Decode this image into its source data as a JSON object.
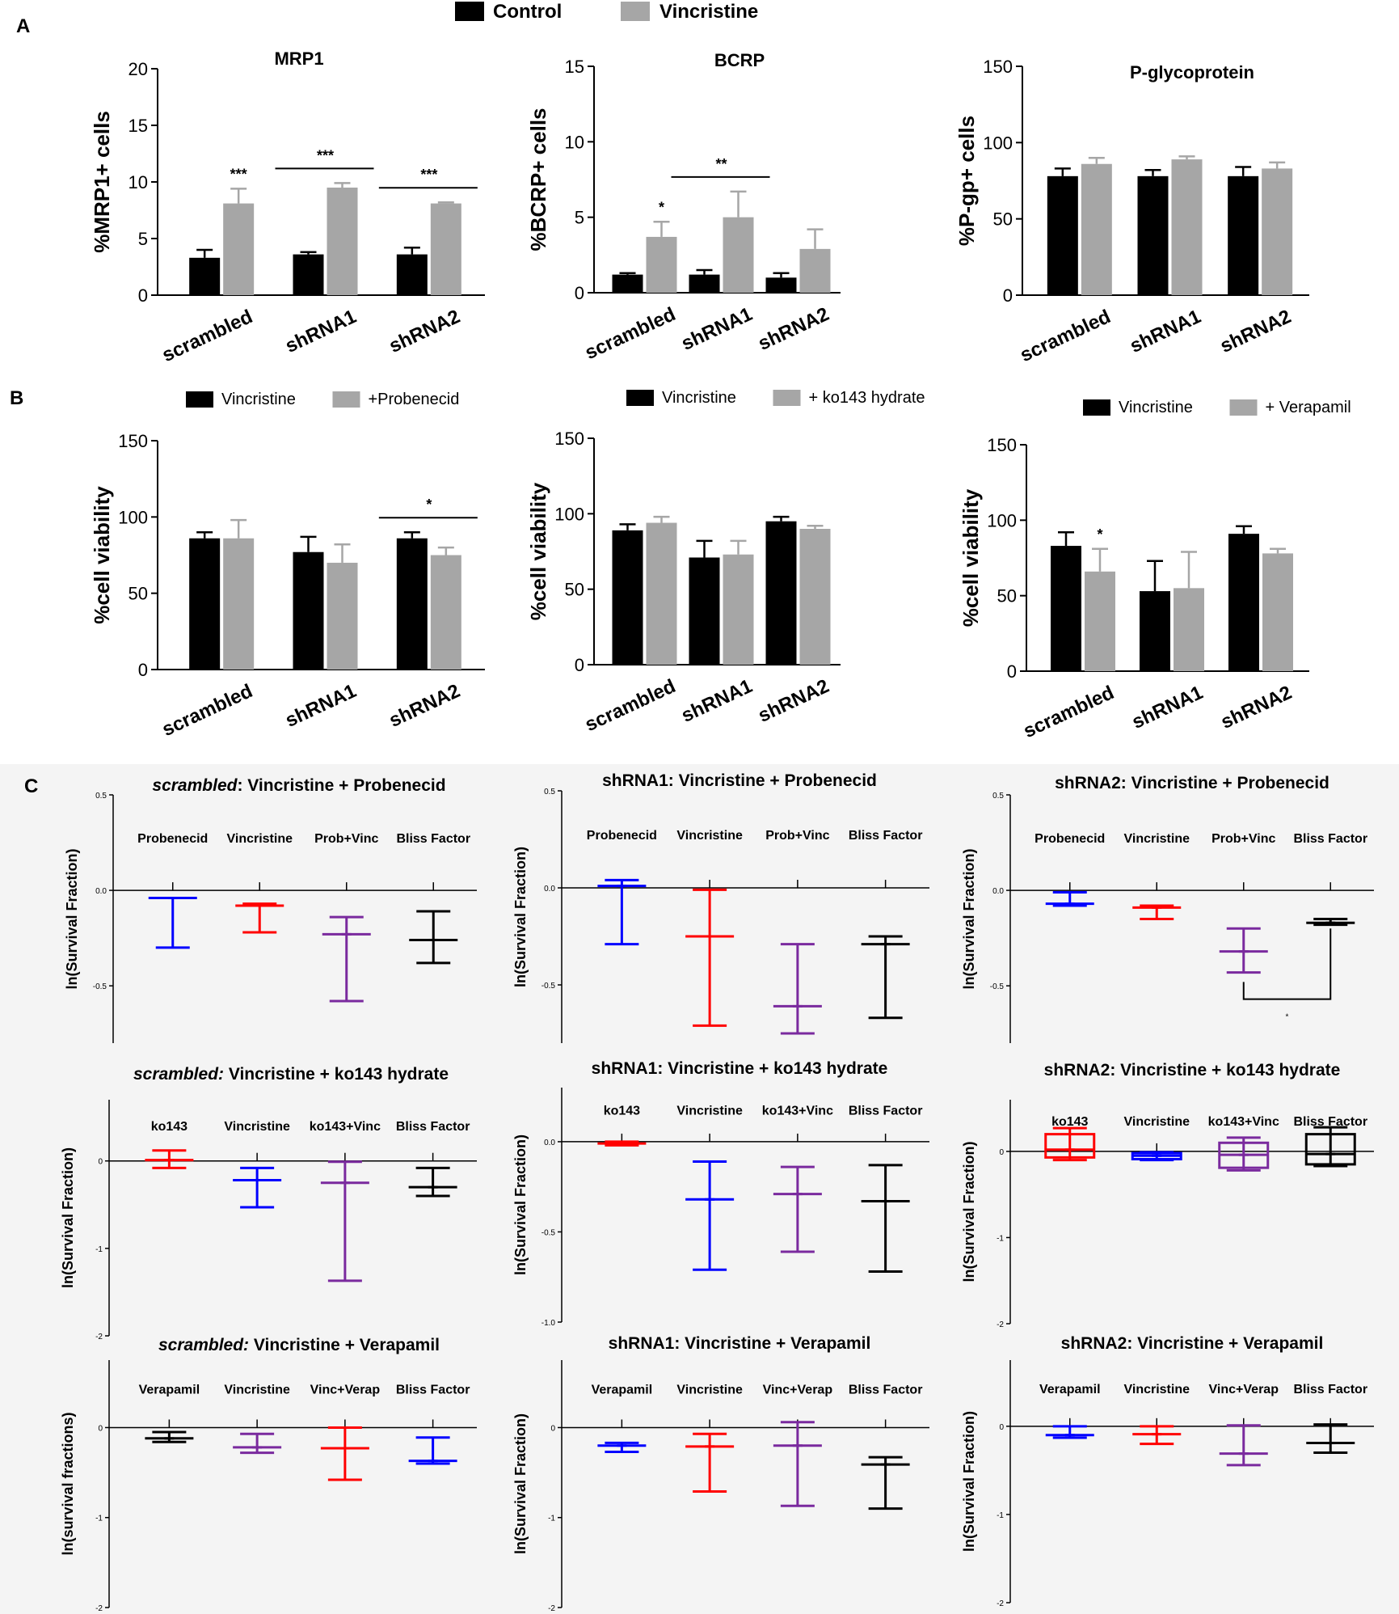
{
  "legend_top": {
    "control": "Control",
    "vincristine": "Vincristine",
    "colors": {
      "control": "#000000",
      "vincristine": "#a6a6a6"
    }
  },
  "panels": {
    "A": "A",
    "B": "B",
    "C": "C"
  },
  "chart_data": [
    {
      "id": "A1",
      "type": "bar",
      "title": "MRP1",
      "ylabel": "%MRP1+ cells",
      "ylim": [
        0,
        20
      ],
      "yticks": [
        "0",
        "5",
        "10",
        "15",
        "20"
      ],
      "categories": [
        "scrambled",
        "shRNA1",
        "shRNA2"
      ],
      "series": [
        {
          "name": "Control",
          "color": "#000000",
          "values": [
            3.3,
            3.6,
            3.6
          ],
          "errors": [
            0.7,
            0.2,
            0.6
          ]
        },
        {
          "name": "Vincristine",
          "color": "#a6a6a6",
          "values": [
            8.1,
            9.5,
            8.1
          ],
          "errors": [
            1.3,
            0.4,
            0.1
          ]
        }
      ],
      "annotations": [
        {
          "text": "***",
          "category": 0,
          "type": "single"
        },
        {
          "text": "***",
          "category": 1,
          "type": "bracket"
        },
        {
          "text": "***",
          "category": 2,
          "type": "bracket"
        }
      ]
    },
    {
      "id": "A2",
      "type": "bar",
      "title": "BCRP",
      "ylabel": "%BCRP+ cells",
      "ylim": [
        0,
        15
      ],
      "yticks": [
        "0",
        "5",
        "10",
        "15"
      ],
      "categories": [
        "scrambled",
        "shRNA1",
        "shRNA2"
      ],
      "series": [
        {
          "name": "Control",
          "color": "#000000",
          "values": [
            1.2,
            1.2,
            1.0
          ],
          "errors": [
            0.1,
            0.3,
            0.3
          ]
        },
        {
          "name": "Vincristine",
          "color": "#a6a6a6",
          "values": [
            3.7,
            5.0,
            2.9
          ],
          "errors": [
            1.0,
            1.7,
            1.3
          ]
        }
      ],
      "annotations": [
        {
          "text": "*",
          "category": 0,
          "type": "single"
        },
        {
          "text": "**",
          "category": 1,
          "type": "bracket"
        }
      ]
    },
    {
      "id": "A3",
      "type": "bar",
      "title": "P-glycoprotein",
      "ylabel": "%P-gp+ cells",
      "ylim": [
        0,
        150
      ],
      "yticks": [
        "0",
        "50",
        "100",
        "150"
      ],
      "categories": [
        "scrambled",
        "shRNA1",
        "shRNA2"
      ],
      "series": [
        {
          "name": "Control",
          "color": "#000000",
          "values": [
            78,
            78,
            78
          ],
          "errors": [
            5,
            4,
            6
          ]
        },
        {
          "name": "Vincristine",
          "color": "#a6a6a6",
          "values": [
            86,
            89,
            83
          ],
          "errors": [
            4,
            2,
            4
          ]
        }
      ],
      "annotations": []
    },
    {
      "id": "B1",
      "type": "bar",
      "title": "",
      "ylabel": "%cell viability",
      "ylim": [
        0,
        150
      ],
      "yticks": [
        "0",
        "50",
        "100",
        "150"
      ],
      "legend": [
        "Vincristine",
        "+Probenecid"
      ],
      "categories": [
        "scrambled",
        "shRNA1",
        "shRNA2"
      ],
      "series": [
        {
          "name": "Vincristine",
          "color": "#000000",
          "values": [
            86,
            77,
            86
          ],
          "errors": [
            4,
            10,
            4
          ]
        },
        {
          "name": "+Probenecid",
          "color": "#a6a6a6",
          "values": [
            86,
            70,
            75
          ],
          "errors": [
            12,
            12,
            5
          ]
        }
      ],
      "annotations": [
        {
          "text": "*",
          "category": 2,
          "type": "bracket"
        }
      ]
    },
    {
      "id": "B2",
      "type": "bar",
      "title": "",
      "ylabel": "%cell viability",
      "ylim": [
        0,
        150
      ],
      "yticks": [
        "0",
        "50",
        "100",
        "150"
      ],
      "legend": [
        "Vincristine",
        "+ ko143 hydrate"
      ],
      "categories": [
        "scrambled",
        "shRNA1",
        "shRNA2"
      ],
      "series": [
        {
          "name": "Vincristine",
          "color": "#000000",
          "values": [
            89,
            71,
            95
          ],
          "errors": [
            4,
            11,
            3
          ]
        },
        {
          "name": "+ ko143 hydrate",
          "color": "#a6a6a6",
          "values": [
            94,
            73,
            90
          ],
          "errors": [
            4,
            9,
            2
          ]
        }
      ],
      "annotations": []
    },
    {
      "id": "B3",
      "type": "bar",
      "title": "",
      "ylabel": "%cell viability",
      "ylim": [
        0,
        150
      ],
      "yticks": [
        "0",
        "50",
        "100",
        "150"
      ],
      "legend": [
        "Vincristine",
        "+ Verapamil"
      ],
      "categories": [
        "scrambled",
        "shRNA1",
        "shRNA2"
      ],
      "series": [
        {
          "name": "Vincristine",
          "color": "#000000",
          "values": [
            83,
            53,
            91
          ],
          "errors": [
            9,
            20,
            5
          ]
        },
        {
          "name": "+ Verapamil",
          "color": "#a6a6a6",
          "values": [
            66,
            55,
            78
          ],
          "errors": [
            15,
            24,
            3
          ]
        }
      ],
      "annotations": [
        {
          "text": "*",
          "category": 0,
          "type": "single"
        }
      ]
    },
    {
      "id": "C1",
      "type": "box",
      "title_italic": "scrambled",
      "title_rest": ": Vincristine + Probenecid",
      "ylabel": "ln(Survival Fraction)",
      "ylim": [
        -0.8,
        0.5
      ],
      "yticks": [
        0.5,
        0.0,
        -0.5
      ],
      "ytick_labels": [
        "0.5",
        "0.0",
        "-0.5"
      ],
      "labels": [
        "Probenecid",
        "Vincristine",
        "Prob+Vinc",
        "Bliss Factor"
      ],
      "groups": [
        {
          "color": "#0000ff",
          "min": -0.3,
          "max": -0.04,
          "mean": -0.04
        },
        {
          "color": "#ff0000",
          "min": -0.22,
          "max": -0.07,
          "mean": -0.08
        },
        {
          "color": "#7a2a9e",
          "min": -0.58,
          "max": -0.14,
          "mean": -0.23
        },
        {
          "color": "#000000",
          "min": -0.38,
          "max": -0.11,
          "mean": -0.26
        }
      ]
    },
    {
      "id": "C2",
      "type": "box",
      "title_italic": "",
      "title_rest": "shRNA1: Vincristine + Probenecid",
      "ylabel": "ln(Survival Fraction)",
      "ylim": [
        -0.8,
        0.5
      ],
      "yticks": [
        0.5,
        0.0,
        -0.5
      ],
      "ytick_labels": [
        "0.5",
        "0.0",
        "-0.5"
      ],
      "labels": [
        "Probenecid",
        "Vincristine",
        "Prob+Vinc",
        "Bliss Factor"
      ],
      "groups": [
        {
          "color": "#0000ff",
          "min": -0.29,
          "max": 0.04,
          "mean": 0.01
        },
        {
          "color": "#ff0000",
          "min": -0.71,
          "max": -0.01,
          "mean": -0.25
        },
        {
          "color": "#7a2a9e",
          "min": -0.75,
          "max": -0.29,
          "mean": -0.61
        },
        {
          "color": "#000000",
          "min": -0.67,
          "max": -0.25,
          "mean": -0.29
        }
      ]
    },
    {
      "id": "C3",
      "type": "box",
      "title_italic": "",
      "title_rest": "shRNA2: Vincristine + Probenecid",
      "ylabel": "ln(Survival Fraction)",
      "ylim": [
        -0.8,
        0.5
      ],
      "yticks": [
        0.5,
        0.0,
        -0.5
      ],
      "ytick_labels": [
        "0.5",
        "0.0",
        "-0.5"
      ],
      "labels": [
        "Probenecid",
        "Vincristine",
        "Prob+Vinc",
        "Bliss Factor"
      ],
      "groups": [
        {
          "color": "#0000ff",
          "min": -0.08,
          "max": -0.01,
          "mean": -0.07
        },
        {
          "color": "#ff0000",
          "min": -0.15,
          "max": -0.08,
          "mean": -0.09
        },
        {
          "color": "#7a2a9e",
          "min": -0.43,
          "max": -0.2,
          "mean": -0.32
        },
        {
          "color": "#000000",
          "min": -0.18,
          "max": -0.15,
          "mean": -0.17
        }
      ],
      "sig": {
        "text": "*",
        "from": 2,
        "to": 3
      }
    },
    {
      "id": "C4",
      "type": "box",
      "title_italic": "scrambled:",
      "title_rest": " Vincristine + ko143 hydrate",
      "ylabel": "ln(Survival Fraction)",
      "ylim": [
        -2,
        0.7
      ],
      "yticks": [
        0,
        -1,
        -2
      ],
      "ytick_labels": [
        "0",
        "-1",
        "-2"
      ],
      "labels": [
        "ko143",
        "Vincristine",
        "ko143+Vinc",
        "Bliss Factor"
      ],
      "groups": [
        {
          "color": "#ff0000",
          "min": -0.08,
          "max": 0.12,
          "mean": 0.01
        },
        {
          "color": "#0000ff",
          "min": -0.53,
          "max": -0.08,
          "mean": -0.22
        },
        {
          "color": "#7a2a9e",
          "min": -1.37,
          "max": -0.01,
          "mean": -0.25
        },
        {
          "color": "#000000",
          "min": -0.4,
          "max": -0.08,
          "mean": -0.3
        }
      ]
    },
    {
      "id": "C5",
      "type": "box",
      "title_italic": "",
      "title_rest": "shRNA1: Vincristine + ko143 hydrate",
      "ylabel": "ln(Survival Fraction)",
      "ylim": [
        -1.0,
        0.3
      ],
      "yticks": [
        0.0,
        -0.5,
        -1.0
      ],
      "ytick_labels": [
        "0.0",
        "-0.5",
        "-1.0"
      ],
      "labels": [
        "ko143",
        "Vincristine",
        "ko143+Vinc",
        "Bliss Factor"
      ],
      "groups": [
        {
          "color": "#ff0000",
          "min": -0.02,
          "max": 0.0,
          "mean": -0.01
        },
        {
          "color": "#0000ff",
          "min": -0.71,
          "max": -0.11,
          "mean": -0.32
        },
        {
          "color": "#7a2a9e",
          "min": -0.61,
          "max": -0.14,
          "mean": -0.29
        },
        {
          "color": "#000000",
          "min": -0.72,
          "max": -0.13,
          "mean": -0.33
        }
      ]
    },
    {
      "id": "C6",
      "type": "box",
      "title_italic": "",
      "title_rest": "shRNA2: Vincristine + ko143 hydrate",
      "ylabel": "ln(Survival Fraction)",
      "ylim": [
        -2,
        0.6
      ],
      "yticks": [
        0,
        -1,
        -2
      ],
      "ytick_labels": [
        "0",
        "-1",
        "-2"
      ],
      "labels": [
        "ko143",
        "Vincristine",
        "ko143+Vinc",
        "Bliss Factor"
      ],
      "groups": [
        {
          "color": "#ff0000",
          "min": -0.1,
          "max": 0.27,
          "mean": 0.02,
          "q1": -0.07,
          "q3": 0.2
        },
        {
          "color": "#0000ff",
          "min": -0.1,
          "max": -0.01,
          "mean": -0.05,
          "q1": -0.09,
          "q3": -0.02
        },
        {
          "color": "#7a2a9e",
          "min": -0.22,
          "max": 0.16,
          "mean": -0.04,
          "q1": -0.19,
          "q3": 0.1
        },
        {
          "color": "#000000",
          "min": -0.17,
          "max": 0.28,
          "mean": -0.03,
          "q1": -0.15,
          "q3": 0.2
        }
      ]
    },
    {
      "id": "C7",
      "type": "box",
      "title_italic": "scrambled:",
      "title_rest": " Vincristine + Verapamil",
      "ylabel": "ln(survival fractions)",
      "ylim": [
        -2,
        0.75
      ],
      "yticks": [
        0,
        -1,
        -2
      ],
      "ytick_labels": [
        "0",
        "-1",
        "-2"
      ],
      "labels": [
        "Verapamil",
        "Vincristine",
        "Vinc+Verap",
        "Bliss Factor"
      ],
      "groups": [
        {
          "color": "#000000",
          "min": -0.16,
          "max": -0.05,
          "mean": -0.12
        },
        {
          "color": "#7a2a9e",
          "min": -0.28,
          "max": -0.07,
          "mean": -0.22
        },
        {
          "color": "#ff0000",
          "min": -0.58,
          "max": 0.0,
          "mean": -0.23
        },
        {
          "color": "#0000ff",
          "min": -0.4,
          "max": -0.11,
          "mean": -0.37
        }
      ]
    },
    {
      "id": "C8",
      "type": "box",
      "title_italic": "",
      "title_rest": "shRNA1:  Vincristine + Verapamil",
      "ylabel": "ln(Survival Fraction)",
      "ylim": [
        -2,
        0.75
      ],
      "yticks": [
        0,
        -1,
        -2
      ],
      "ytick_labels": [
        "0",
        "-1",
        "-2"
      ],
      "labels": [
        "Verapamil",
        "Vincristine",
        "Vinc+Verap",
        "Bliss Factor"
      ],
      "groups": [
        {
          "color": "#0000ff",
          "min": -0.27,
          "max": -0.17,
          "mean": -0.2
        },
        {
          "color": "#ff0000",
          "min": -0.71,
          "max": -0.07,
          "mean": -0.21
        },
        {
          "color": "#7a2a9e",
          "min": -0.87,
          "max": 0.06,
          "mean": -0.2
        },
        {
          "color": "#000000",
          "min": -0.9,
          "max": -0.33,
          "mean": -0.41
        }
      ]
    },
    {
      "id": "C9",
      "type": "box",
      "title_italic": "",
      "title_rest": "shRNA2:  Vincristine + Verapamil",
      "ylabel": "ln(Survival Fraction)",
      "ylim": [
        -2,
        0.75
      ],
      "yticks": [
        0,
        -1,
        -2
      ],
      "ytick_labels": [
        "0",
        "-1",
        "-2"
      ],
      "labels": [
        "Verapamil",
        "Vincristine",
        "Vinc+Verap",
        "Bliss Factor"
      ],
      "groups": [
        {
          "color": "#0000ff",
          "min": -0.13,
          "max": 0.0,
          "mean": -0.1
        },
        {
          "color": "#ff0000",
          "min": -0.2,
          "max": 0.0,
          "mean": -0.09
        },
        {
          "color": "#7a2a9e",
          "min": -0.44,
          "max": 0.01,
          "mean": -0.31
        },
        {
          "color": "#000000",
          "min": -0.3,
          "max": 0.02,
          "mean": -0.19
        }
      ]
    }
  ]
}
